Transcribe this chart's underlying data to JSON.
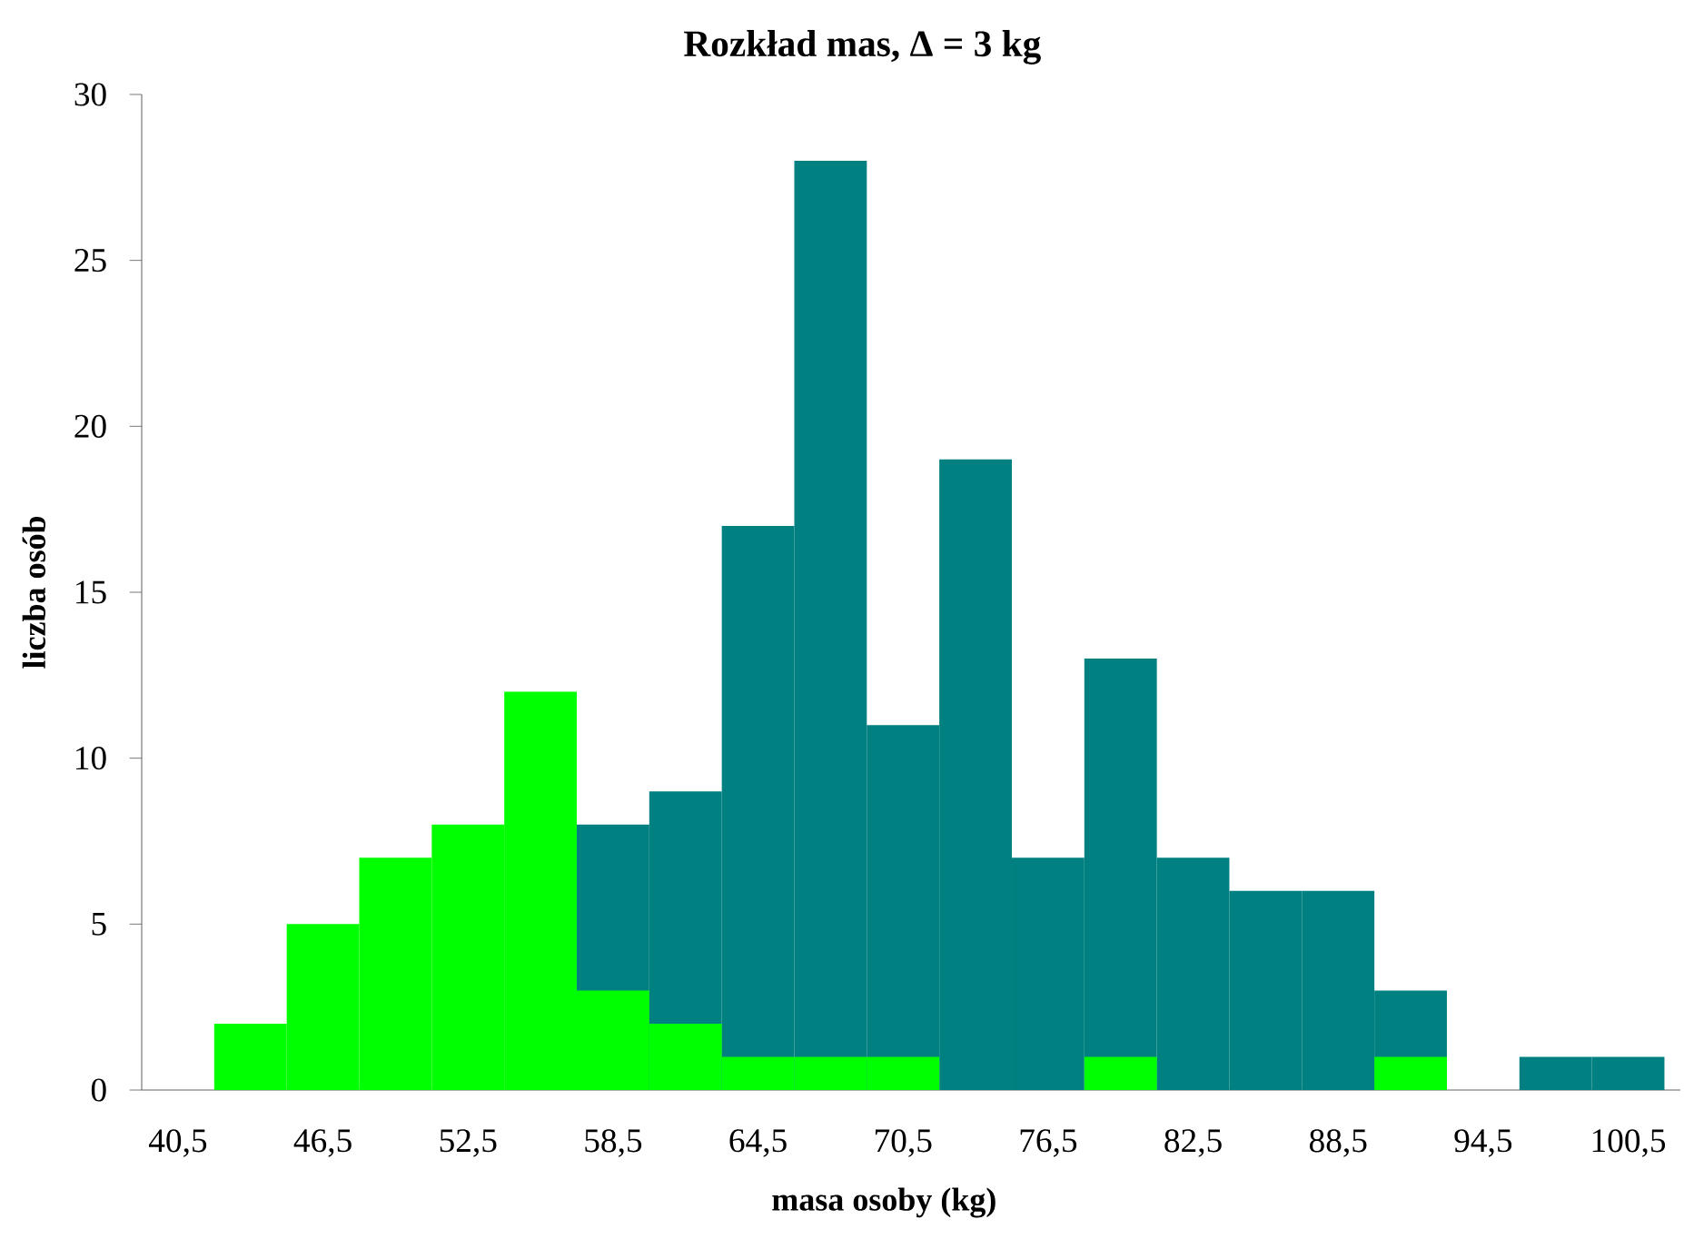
{
  "chart_data": {
    "type": "bar",
    "title": "Rozkład mas, Δ = 3 kg",
    "xlabel": "masa osoby (kg)",
    "ylabel": "liczba osób",
    "categories": [
      "40,5",
      null,
      "46,5",
      null,
      "52,5",
      null,
      "58,5",
      null,
      "64,5",
      null,
      "70,5",
      null,
      "76,5",
      null,
      "82,5",
      null,
      "88,5",
      null,
      "94,5",
      null,
      "100,5"
    ],
    "series": [
      {
        "color": "#008080",
        "values": [
          0,
          null,
          null,
          null,
          null,
          null,
          8,
          9,
          17,
          28,
          11,
          19,
          7,
          13,
          7,
          6,
          6,
          3,
          0,
          1,
          1
        ]
      },
      {
        "color": "#00ff00",
        "values": [
          0,
          2,
          5,
          7,
          8,
          12,
          3,
          2,
          1,
          1,
          1,
          0,
          0,
          1,
          0,
          0,
          0,
          1,
          0,
          0,
          0
        ]
      }
    ],
    "ylim": [
      0,
      30
    ],
    "yticks": [
      0,
      5,
      10,
      15,
      20,
      25,
      30
    ]
  }
}
